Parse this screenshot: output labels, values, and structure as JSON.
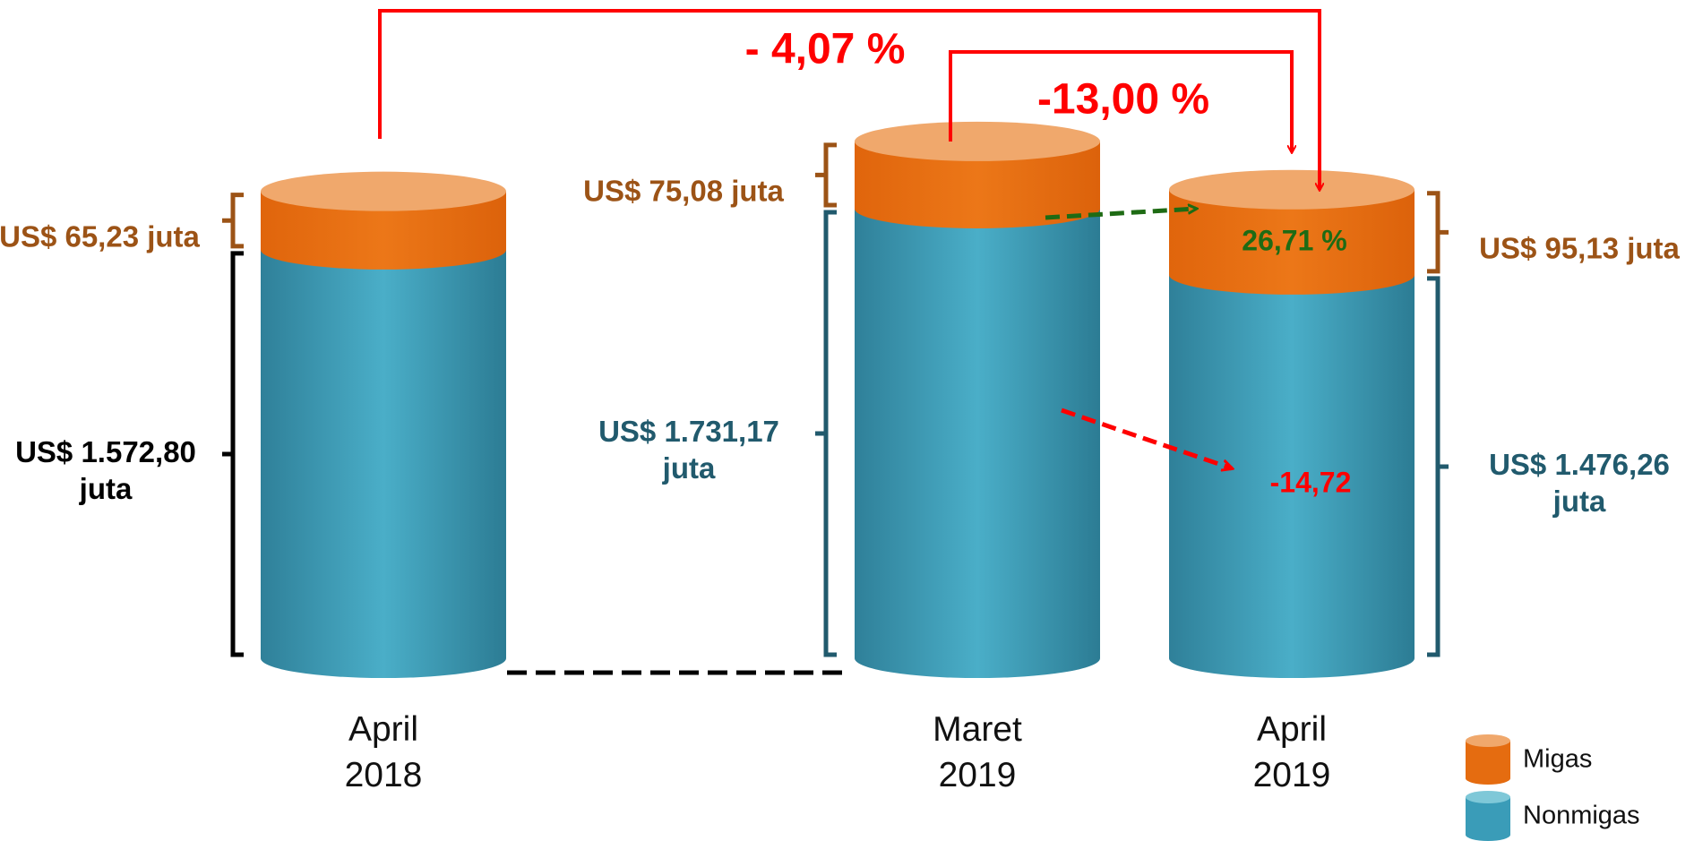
{
  "chart_data": {
    "type": "cylinder",
    "categories": [
      "April 2018",
      "Maret 2019",
      "April 2019"
    ],
    "series": [
      {
        "name": "Nonmigas",
        "color": "#3a9cb8",
        "values": [
          1572.8,
          1731.17,
          1476.26
        ],
        "value_labels": [
          "US$ 1.572,80 juta",
          "US$ 1.731,17 juta",
          "US$ 1.476,26 juta"
        ],
        "label_colors": [
          "#000000",
          "#215a6d",
          "#215a6d"
        ]
      },
      {
        "name": "Migas",
        "color": "#e56c10",
        "values": [
          65.23,
          75.08,
          95.13
        ],
        "value_labels": [
          "US$ 65,23 juta",
          "US$ 75,08 juta",
          "US$ 95,13 juta"
        ],
        "label_colors": [
          "#9c5316",
          "#9c5316",
          "#9c5316"
        ]
      }
    ],
    "changes": [
      {
        "value": -4.07,
        "label": "- 4,07 %",
        "color": "#ff0000"
      },
      {
        "value": -13.0,
        "label": "-13,00 %",
        "color": "#ff0000"
      },
      {
        "value": 26.71,
        "label": "26,71 %",
        "color": "#1e6b14"
      },
      {
        "value": -14.72,
        "label": "-14,72",
        "color": "#ff0000"
      }
    ]
  }
}
